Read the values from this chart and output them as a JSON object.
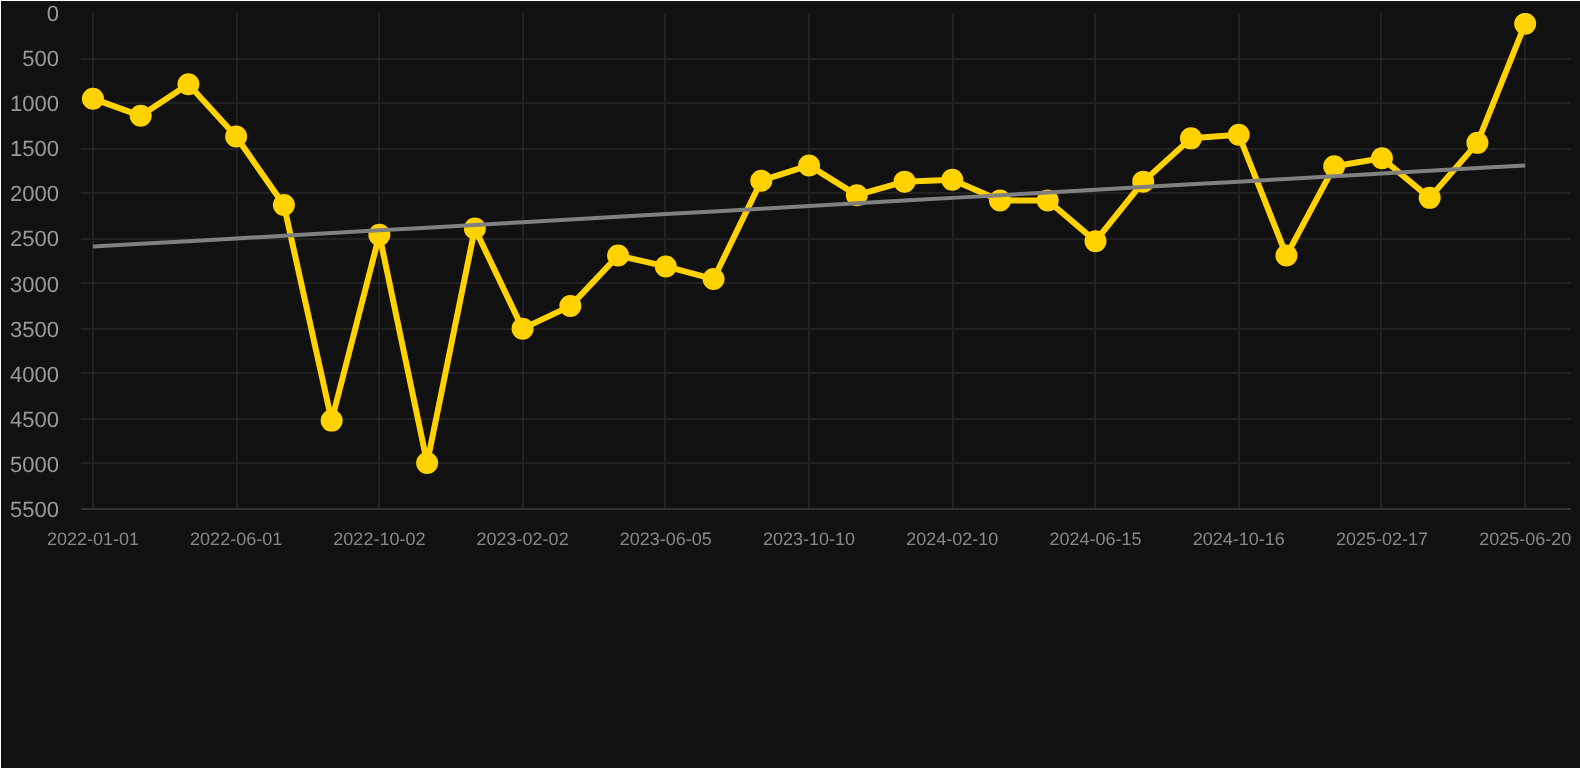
{
  "chart_data": {
    "type": "line",
    "categories": [
      "2022-01-01",
      null,
      null,
      "2022-06-01",
      null,
      null,
      "2022-10-02",
      null,
      null,
      "2023-02-02",
      null,
      null,
      "2023-06-05",
      null,
      null,
      "2023-10-10",
      null,
      null,
      "2024-02-10",
      null,
      null,
      "2024-06-15",
      null,
      null,
      "2024-10-16",
      null,
      null,
      "2025-02-17",
      null,
      null,
      "2025-06-20"
    ],
    "series": [
      {
        "color": "#ffd200",
        "marker": "circle",
        "values": [
          950,
          1140,
          790,
          1370,
          2130,
          4520,
          2460,
          4990,
          2390,
          3500,
          3250,
          2690,
          2810,
          2950,
          1860,
          1690,
          2020,
          1870,
          1850,
          2080,
          2080,
          2530,
          1870,
          1390,
          1350,
          2690,
          1700,
          1610,
          2050,
          1440,
          120
        ]
      },
      {
        "color": "#808080",
        "marker": "none",
        "values": [
          2590,
          2560,
          2530,
          2500,
          2470,
          2440,
          2410,
          2380,
          2350,
          2320,
          2290,
          2260,
          2230,
          2200,
          2170,
          2140,
          2110,
          2080,
          2050,
          2020,
          1990,
          1960,
          1930,
          1900,
          1870,
          1840,
          1810,
          1780,
          1750,
          1720,
          1690
        ]
      }
    ],
    "ylim": [
      5500,
      0
    ],
    "yticks": [
      0,
      500,
      1000,
      1500,
      2000,
      2500,
      3000,
      3500,
      4000,
      4500,
      5000,
      5500
    ],
    "grid": true
  }
}
